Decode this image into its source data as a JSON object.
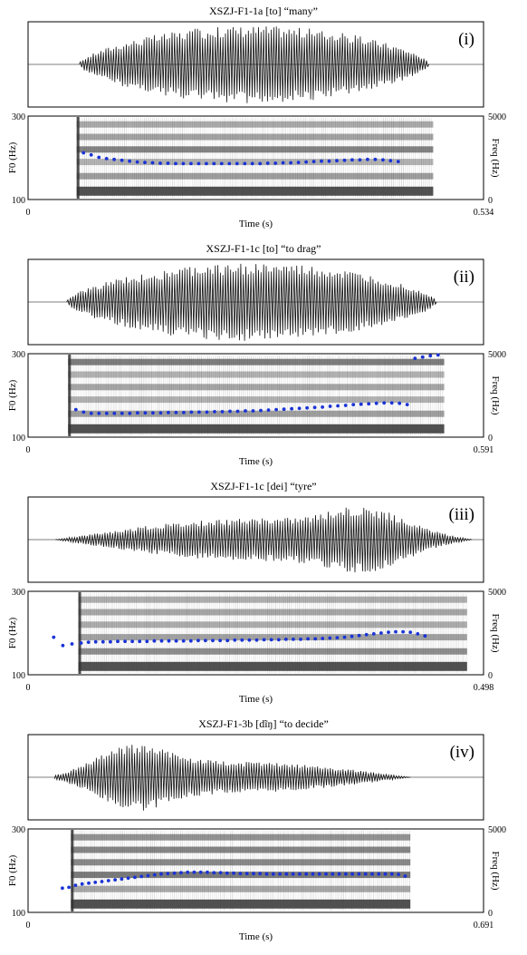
{
  "chart_data": [
    {
      "type": "scatter",
      "title": "XSZJ-F1-1a [to] “many”",
      "panel_label": "(i)",
      "xlabel": "Time (s)",
      "ylabel_left": "F0 (Hz)",
      "ylabel_right": "Freq (Hz)",
      "xlim": [
        0,
        0.534
      ],
      "ylim_left": [
        100,
        300
      ],
      "ylim_right": [
        0,
        5000
      ],
      "x_tick_labels": [
        "0",
        "0.534"
      ],
      "y_left_tick_labels": [
        "300",
        "100"
      ],
      "y_right_tick_labels": [
        "5000",
        "0"
      ],
      "signal_span": [
        0.06,
        0.47
      ],
      "spectrogram_span": [
        0.057,
        0.475
      ],
      "f0_points": {
        "x": [
          0.065,
          0.074,
          0.083,
          0.092,
          0.101,
          0.11,
          0.119,
          0.128,
          0.137,
          0.146,
          0.155,
          0.164,
          0.173,
          0.182,
          0.191,
          0.2,
          0.209,
          0.218,
          0.227,
          0.236,
          0.245,
          0.254,
          0.263,
          0.272,
          0.281,
          0.29,
          0.299,
          0.308,
          0.317,
          0.326,
          0.335,
          0.344,
          0.353,
          0.362,
          0.371,
          0.38,
          0.389,
          0.398,
          0.407,
          0.416,
          0.425,
          0.434
        ],
        "y": [
          212,
          207,
          201,
          198,
          196,
          194,
          192,
          190,
          189,
          188,
          187,
          187,
          186,
          186,
          186,
          186,
          186,
          186,
          186,
          186,
          186,
          186,
          186,
          186,
          187,
          187,
          188,
          188,
          189,
          190,
          191,
          192,
          192,
          193,
          194,
          195,
          195,
          196,
          196,
          195,
          193,
          191
        ]
      }
    },
    {
      "type": "scatter",
      "title": "XSZJ-F1-1c [to] “to drag”",
      "panel_label": "(ii)",
      "xlabel": "Time (s)",
      "ylabel_left": "F0 (Hz)",
      "ylabel_right": "Freq (Hz)",
      "xlim": [
        0,
        0.591
      ],
      "ylim_left": [
        100,
        300
      ],
      "ylim_right": [
        0,
        5000
      ],
      "x_tick_labels": [
        "0",
        "0.591"
      ],
      "y_left_tick_labels": [
        "300",
        "100"
      ],
      "y_right_tick_labels": [
        "5000",
        "0"
      ],
      "signal_span": [
        0.05,
        0.53
      ],
      "spectrogram_span": [
        0.052,
        0.54
      ],
      "f0_points": {
        "x": [
          0.062,
          0.072,
          0.082,
          0.092,
          0.102,
          0.112,
          0.122,
          0.132,
          0.142,
          0.152,
          0.162,
          0.172,
          0.182,
          0.192,
          0.202,
          0.212,
          0.222,
          0.232,
          0.242,
          0.252,
          0.262,
          0.272,
          0.282,
          0.292,
          0.302,
          0.312,
          0.322,
          0.332,
          0.342,
          0.352,
          0.362,
          0.372,
          0.382,
          0.392,
          0.402,
          0.412,
          0.422,
          0.432,
          0.442,
          0.452,
          0.462,
          0.472,
          0.482,
          0.492,
          0.502,
          0.512,
          0.522,
          0.532
        ],
        "y": [
          166,
          160,
          157,
          157,
          157,
          157,
          157,
          157,
          158,
          158,
          158,
          158,
          159,
          159,
          159,
          160,
          160,
          160,
          161,
          161,
          162,
          162,
          163,
          163,
          164,
          165,
          166,
          167,
          168,
          169,
          170,
          171,
          172,
          174,
          175,
          176,
          178,
          179,
          180,
          181,
          182,
          182,
          181,
          178,
          289,
          292,
          295,
          297
        ]
      }
    },
    {
      "type": "scatter",
      "title": "XSZJ-F1-1c [dei] “tyre”",
      "panel_label": "(iii)",
      "xlabel": "Time (s)",
      "ylabel_left": "F0 (Hz)",
      "ylabel_right": "Freq (Hz)",
      "xlim": [
        0,
        0.498
      ],
      "ylim_left": [
        100,
        300
      ],
      "ylim_right": [
        0,
        5000
      ],
      "x_tick_labels": [
        "0",
        "0.498"
      ],
      "y_left_tick_labels": [
        "300",
        "100"
      ],
      "y_right_tick_labels": [
        "5000",
        "0"
      ],
      "signal_span": [
        0.03,
        0.485
      ],
      "spectrogram_span": [
        0.055,
        0.48
      ],
      "f0_points": {
        "x": [
          0.028,
          0.038,
          0.048,
          0.058,
          0.066,
          0.074,
          0.082,
          0.09,
          0.098,
          0.106,
          0.114,
          0.122,
          0.13,
          0.138,
          0.146,
          0.154,
          0.162,
          0.17,
          0.178,
          0.186,
          0.194,
          0.202,
          0.21,
          0.218,
          0.226,
          0.234,
          0.242,
          0.25,
          0.258,
          0.266,
          0.274,
          0.282,
          0.29,
          0.298,
          0.306,
          0.314,
          0.322,
          0.33,
          0.338,
          0.346,
          0.354,
          0.362,
          0.37,
          0.378,
          0.386,
          0.394,
          0.402,
          0.41,
          0.418,
          0.426,
          0.434
        ],
        "y": [
          190,
          170,
          174,
          176,
          178,
          179,
          179,
          179,
          180,
          180,
          180,
          180,
          180,
          181,
          181,
          181,
          181,
          181,
          181,
          182,
          182,
          182,
          182,
          182,
          183,
          183,
          183,
          183,
          184,
          184,
          184,
          185,
          185,
          185,
          186,
          186,
          187,
          188,
          189,
          190,
          192,
          194,
          196,
          198,
          200,
          202,
          203,
          203,
          202,
          198,
          193
        ]
      }
    },
    {
      "type": "scatter",
      "title": "XSZJ-F1-3b [dĩŋ] “to decide”",
      "panel_label": "(iv)",
      "xlabel": "Time (s)",
      "ylabel_left": "F0 (Hz)",
      "ylabel_right": "Freq (Hz)",
      "xlim": [
        0,
        0.691
      ],
      "ylim_left": [
        100,
        300
      ],
      "ylim_right": [
        0,
        5000
      ],
      "x_tick_labels": [
        "0",
        "0.691"
      ],
      "y_left_tick_labels": [
        "300",
        "100"
      ],
      "y_right_tick_labels": [
        "5000",
        "0"
      ],
      "signal_span": [
        0.04,
        0.58
      ],
      "spectrogram_span": [
        0.065,
        0.58
      ],
      "f0_points": {
        "x": [
          0.052,
          0.062,
          0.072,
          0.082,
          0.092,
          0.102,
          0.112,
          0.122,
          0.132,
          0.142,
          0.152,
          0.162,
          0.172,
          0.182,
          0.192,
          0.202,
          0.212,
          0.222,
          0.232,
          0.242,
          0.252,
          0.262,
          0.272,
          0.282,
          0.292,
          0.302,
          0.312,
          0.322,
          0.332,
          0.342,
          0.352,
          0.362,
          0.372,
          0.382,
          0.392,
          0.402,
          0.412,
          0.422,
          0.432,
          0.442,
          0.452,
          0.462,
          0.472,
          0.482,
          0.492,
          0.502,
          0.512,
          0.522,
          0.532,
          0.542,
          0.552,
          0.562,
          0.572
        ],
        "y": [
          158,
          160,
          165,
          168,
          170,
          172,
          174,
          176,
          178,
          180,
          182,
          184,
          186,
          188,
          190,
          192,
          193,
          194,
          195,
          196,
          196,
          196,
          196,
          195,
          195,
          194,
          194,
          193,
          193,
          193,
          193,
          192,
          192,
          192,
          192,
          192,
          192,
          192,
          192,
          192,
          192,
          192,
          192,
          192,
          192,
          192,
          192,
          192,
          192,
          192,
          192,
          191,
          187
        ]
      }
    }
  ]
}
